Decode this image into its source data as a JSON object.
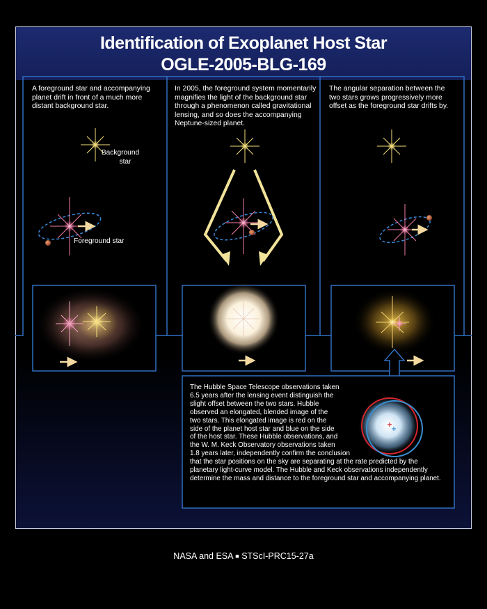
{
  "title": {
    "line1": "Identification of Exoplanet Host Star",
    "line2": "OGLE-2005-BLG-169"
  },
  "panels": [
    {
      "caption": [
        "A foreground star and accompanying",
        "planet drift in front of a much more",
        "distant background star."
      ],
      "labels": {
        "background_star": [
          "Background",
          "star"
        ],
        "foreground_star": "Foreground star"
      }
    },
    {
      "caption": [
        "In 2005, the foreground system momentarily",
        "magnifies the light of the background star",
        "through a phenomenon called gravitational",
        "lensing, and so does the accompanying",
        "Neptune-sized planet."
      ]
    },
    {
      "caption": [
        "The angular separation between the",
        "two stars grows progressively more",
        "offset as the foreground star drifts by."
      ]
    }
  ],
  "observation": {
    "text": [
      "The Hubble Space Telescope observations taken",
      "6.5 years after the lensing event distinguish the",
      "slight offset between the two stars. Hubble",
      "observed an elongated, blended image of the",
      "two stars. This elongated image is red on the",
      "side of the planet host star and blue on the side",
      "of the host star. These Hubble observations, and",
      "the W. M. Keck Observatory observations taken",
      "1.8 years later, independently confirm the conclusion",
      "that the star positions on the sky are separating at the rate predicted by the",
      "planetary light-curve model. The Hubble and Keck observations independently",
      "determine the mass and distance to the foreground star and accompanying planet."
    ]
  },
  "credit": {
    "agencies": "NASA and ESA",
    "separator": "■",
    "release_id": "STScI-PRC15-27a"
  },
  "colors": {
    "title_band": "#1c2a6f",
    "panel_border": "#2f6fc0",
    "orbit": "#3a8ad8",
    "motion_arrow": "#f3d9a0",
    "lensing_arrow": "#f1e39a",
    "host_star": "#f47ca8",
    "background_star": "#f6e07a",
    "planet": "#d07a5a",
    "red_ring": "#d8262e",
    "blue_ring": "#3a8fd0"
  }
}
